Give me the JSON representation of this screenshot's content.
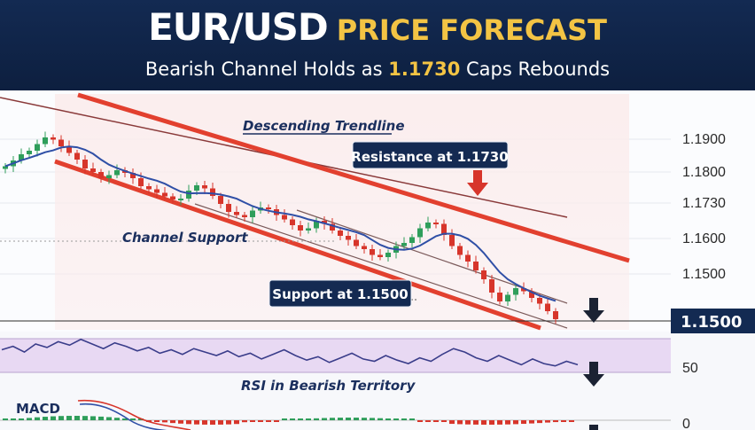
{
  "header": {
    "title_main": "EUR/USD",
    "title_accent": "PRICE FORECAST",
    "subtitle_before": "Bearish Channel Holds as ",
    "subtitle_highlight": "1.1730",
    "subtitle_after": " Caps Rebounds"
  },
  "colors": {
    "banner": "#0f2347",
    "accent_gold": "#f3c444",
    "bull": "#2f9e5b",
    "bear": "#d7352b",
    "moving_average": "#2f4fa6",
    "channel": "#e2402f",
    "rsi_band": "#e8d9f3"
  },
  "chart_data": {
    "type": "candlestick",
    "price_axis": {
      "ticks": [
        "1.1900",
        "1.1800",
        "1.1730",
        "1.1600",
        "1.1500"
      ],
      "current_price_label": "1.1500"
    },
    "price_path": [
      1.1845,
      1.1858,
      1.1872,
      1.188,
      1.1895,
      1.191,
      1.1905,
      1.189,
      1.1875,
      1.186,
      1.184,
      1.1832,
      1.1818,
      1.1825,
      1.1836,
      1.183,
      1.1818,
      1.18,
      1.1793,
      1.1785,
      1.1777,
      1.177,
      1.1772,
      1.179,
      1.1802,
      1.1795,
      1.1778,
      1.176,
      1.1742,
      1.1735,
      1.173,
      1.1745,
      1.1752,
      1.1748,
      1.1735,
      1.1725,
      1.1712,
      1.17,
      1.1705,
      1.1722,
      1.1715,
      1.17,
      1.1688,
      1.1679,
      1.1665,
      1.1658,
      1.1645,
      1.164,
      1.165,
      1.1665,
      1.1672,
      1.1685,
      1.1705,
      1.1718,
      1.1715,
      1.169,
      1.1665,
      1.1645,
      1.163,
      1.161,
      1.159,
      1.156,
      1.154,
      1.1555,
      1.157,
      1.1563,
      1.1548,
      1.1535,
      1.1518,
      1.15
    ],
    "annotations": {
      "descending_trendline": "Descending Trendline",
      "resistance": "Resistance at 1.1730",
      "channel_support": "Channel Support",
      "support": "Support at 1.1500"
    },
    "rsi": {
      "level_label": "50",
      "annotation": "RSI in Bearish Territory",
      "values": [
        55,
        58,
        53,
        60,
        57,
        62,
        59,
        64,
        60,
        56,
        61,
        58,
        54,
        57,
        52,
        55,
        51,
        56,
        53,
        50,
        54,
        49,
        52,
        47,
        51,
        55,
        50,
        46,
        49,
        44,
        48,
        52,
        47,
        45,
        50,
        46,
        43,
        48,
        45,
        51,
        56,
        53,
        48,
        45,
        50,
        46,
        42,
        47,
        43,
        41,
        45,
        42
      ]
    },
    "macd": {
      "label": "MACD",
      "zero_label": "0"
    }
  }
}
